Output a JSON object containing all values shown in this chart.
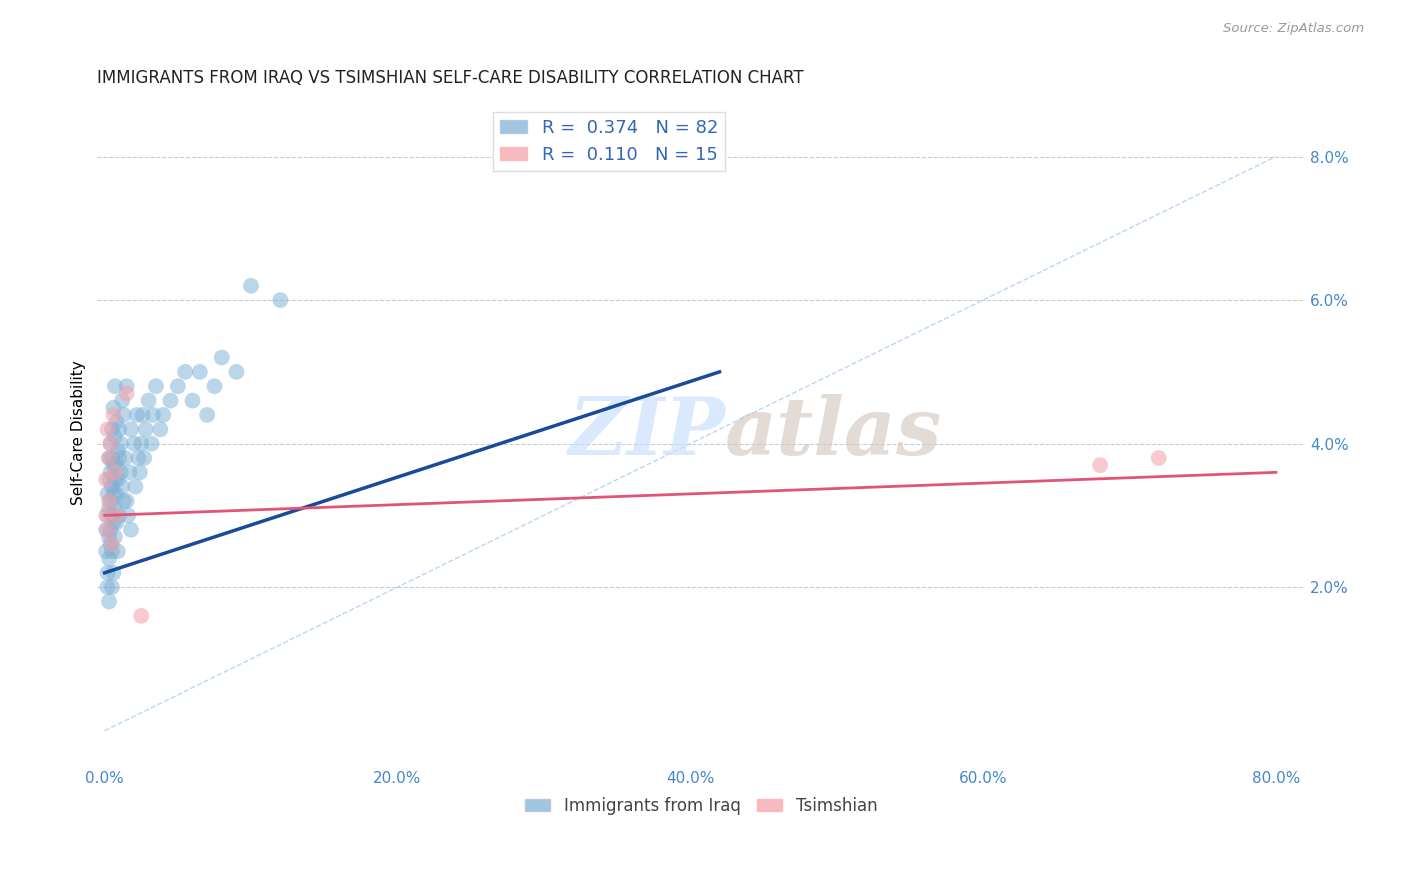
{
  "title": "IMMIGRANTS FROM IRAQ VS TSIMSHIAN SELF-CARE DISABILITY CORRELATION CHART",
  "source": "Source: ZipAtlas.com",
  "ylabel": "Self-Care Disability",
  "right_yticks": [
    0.0,
    0.02,
    0.04,
    0.06,
    0.08
  ],
  "right_yticklabels": [
    "",
    "2.0%",
    "4.0%",
    "6.0%",
    "8.0%"
  ],
  "xticks": [
    0.0,
    0.2,
    0.4,
    0.6,
    0.8
  ],
  "xticklabels": [
    "0.0%",
    "20.0%",
    "40.0%",
    "60.0%",
    "80.0%"
  ],
  "xlim": [
    -0.005,
    0.82
  ],
  "ylim": [
    -0.005,
    0.088
  ],
  "blue_R": 0.374,
  "blue_N": 82,
  "pink_R": 0.11,
  "pink_N": 15,
  "legend_label1": "Immigrants from Iraq",
  "legend_label2": "Tsimshian",
  "blue_color": "#7BAFD4",
  "pink_color": "#F4A0A8",
  "blue_line_color": "#1A4A9A",
  "pink_line_color": "#E05575",
  "watermark_zip": "ZIP",
  "watermark_atlas": "atlas",
  "blue_scatter_x": [
    0.001,
    0.001,
    0.002,
    0.002,
    0.002,
    0.002,
    0.003,
    0.003,
    0.003,
    0.003,
    0.003,
    0.003,
    0.004,
    0.004,
    0.004,
    0.004,
    0.004,
    0.005,
    0.005,
    0.005,
    0.005,
    0.005,
    0.005,
    0.006,
    0.006,
    0.006,
    0.006,
    0.006,
    0.007,
    0.007,
    0.007,
    0.007,
    0.007,
    0.008,
    0.008,
    0.008,
    0.008,
    0.009,
    0.009,
    0.009,
    0.01,
    0.01,
    0.01,
    0.011,
    0.011,
    0.012,
    0.012,
    0.013,
    0.013,
    0.014,
    0.015,
    0.015,
    0.016,
    0.017,
    0.018,
    0.018,
    0.02,
    0.021,
    0.022,
    0.023,
    0.024,
    0.025,
    0.026,
    0.027,
    0.028,
    0.03,
    0.032,
    0.033,
    0.035,
    0.038,
    0.04,
    0.045,
    0.05,
    0.055,
    0.06,
    0.065,
    0.07,
    0.075,
    0.08,
    0.09,
    0.1,
    0.12
  ],
  "blue_scatter_y": [
    0.025,
    0.028,
    0.022,
    0.03,
    0.033,
    0.02,
    0.027,
    0.031,
    0.024,
    0.035,
    0.018,
    0.038,
    0.028,
    0.032,
    0.026,
    0.036,
    0.04,
    0.03,
    0.034,
    0.025,
    0.038,
    0.042,
    0.02,
    0.029,
    0.033,
    0.037,
    0.022,
    0.045,
    0.031,
    0.035,
    0.027,
    0.041,
    0.048,
    0.033,
    0.037,
    0.029,
    0.043,
    0.035,
    0.039,
    0.025,
    0.038,
    0.042,
    0.03,
    0.036,
    0.04,
    0.034,
    0.046,
    0.032,
    0.044,
    0.038,
    0.032,
    0.048,
    0.03,
    0.036,
    0.042,
    0.028,
    0.04,
    0.034,
    0.044,
    0.038,
    0.036,
    0.04,
    0.044,
    0.038,
    0.042,
    0.046,
    0.04,
    0.044,
    0.048,
    0.042,
    0.044,
    0.046,
    0.048,
    0.05,
    0.046,
    0.05,
    0.044,
    0.048,
    0.052,
    0.05,
    0.062,
    0.06
  ],
  "pink_scatter_x": [
    0.001,
    0.001,
    0.002,
    0.002,
    0.003,
    0.003,
    0.004,
    0.005,
    0.006,
    0.007,
    0.008,
    0.015,
    0.025,
    0.68,
    0.72
  ],
  "pink_scatter_y": [
    0.03,
    0.035,
    0.028,
    0.042,
    0.038,
    0.032,
    0.04,
    0.026,
    0.044,
    0.036,
    0.03,
    0.047,
    0.016,
    0.037,
    0.038
  ],
  "blue_line_x": [
    0.0,
    0.42
  ],
  "blue_line_y": [
    0.022,
    0.05
  ],
  "pink_line_x": [
    0.0,
    0.8
  ],
  "pink_line_y": [
    0.03,
    0.036
  ],
  "diag_line_x": [
    0.0,
    0.8
  ],
  "diag_line_y": [
    0.0,
    0.08
  ]
}
